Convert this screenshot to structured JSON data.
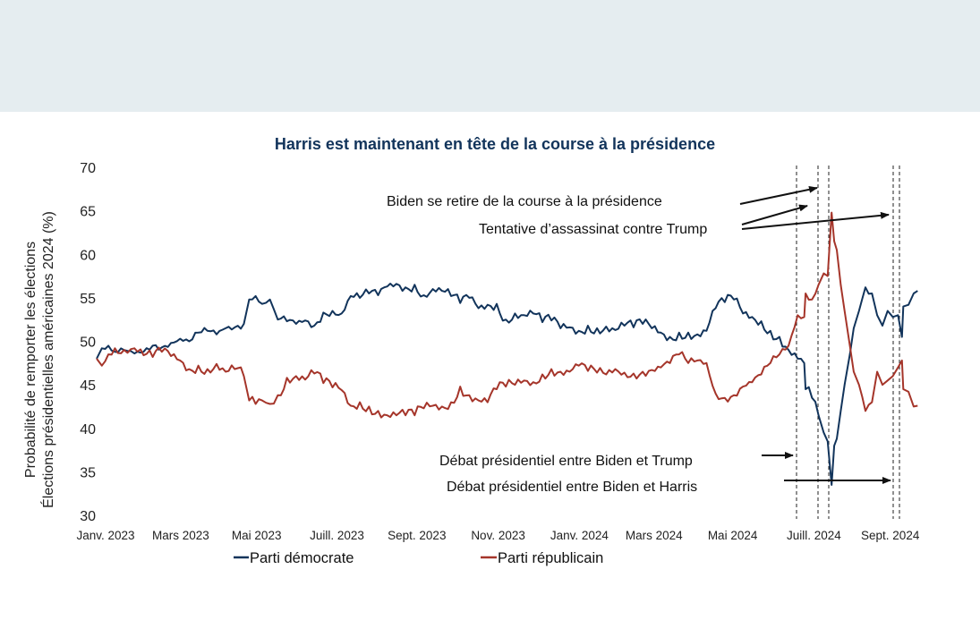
{
  "header": {
    "background": "#e5edf0"
  },
  "chart_data": {
    "type": "line",
    "title": "Harris  est maintenant en tête de la course à la présidence",
    "ylabel_lines": [
      "Probabilité de remporter les élections",
      "Élections présidentielles américaines 2024 (%)"
    ],
    "xlabel": "",
    "ylim": [
      30,
      70
    ],
    "yticks": [
      30,
      35,
      40,
      45,
      50,
      55,
      60,
      65,
      70
    ],
    "xlim_dates": [
      "2023-01-01",
      "2024-09-30"
    ],
    "xticks": [
      {
        "label": "Janv. 2023",
        "date": "2023-01-01"
      },
      {
        "label": "Mars 2023",
        "date": "2023-03-01"
      },
      {
        "label": "Mai 2023",
        "date": "2023-05-01"
      },
      {
        "label": "Juill. 2023",
        "date": "2023-07-01"
      },
      {
        "label": "Sept. 2023",
        "date": "2023-09-01"
      },
      {
        "label": "Nov. 2023",
        "date": "2023-11-01"
      },
      {
        "label": "Janv. 2024",
        "date": "2024-01-01"
      },
      {
        "label": "Mars 2024",
        "date": "2024-03-01"
      },
      {
        "label": "Mai 2024",
        "date": "2024-05-01"
      },
      {
        "label": "Juill. 2024",
        "date": "2024-07-01"
      },
      {
        "label": "Sept. 2024",
        "date": "2024-09-01"
      }
    ],
    "grid": false,
    "legend_position": "bottom",
    "series": [
      {
        "name": "Parti démocrate",
        "color": "#12345b",
        "points": [
          [
            "2023-01-01",
            48.0
          ],
          [
            "2023-01-05",
            49.2
          ],
          [
            "2023-01-10",
            49.5
          ],
          [
            "2023-01-15",
            48.8
          ],
          [
            "2023-01-22",
            49.0
          ],
          [
            "2023-01-30",
            48.6
          ],
          [
            "2023-02-06",
            48.8
          ],
          [
            "2023-02-13",
            49.5
          ],
          [
            "2023-02-20",
            49.3
          ],
          [
            "2023-02-27",
            49.8
          ],
          [
            "2023-03-06",
            50.3
          ],
          [
            "2023-03-13",
            50.0
          ],
          [
            "2023-03-20",
            51.0
          ],
          [
            "2023-03-27",
            51.2
          ],
          [
            "2023-04-03",
            50.8
          ],
          [
            "2023-04-10",
            51.5
          ],
          [
            "2023-04-17",
            51.6
          ],
          [
            "2023-04-24",
            52.0
          ],
          [
            "2023-04-28",
            54.8
          ],
          [
            "2023-05-03",
            55.2
          ],
          [
            "2023-05-08",
            54.3
          ],
          [
            "2023-05-14",
            54.8
          ],
          [
            "2023-05-20",
            52.5
          ],
          [
            "2023-05-27",
            52.3
          ],
          [
            "2023-06-03",
            52.0
          ],
          [
            "2023-06-10",
            52.4
          ],
          [
            "2023-06-17",
            51.8
          ],
          [
            "2023-06-24",
            53.3
          ],
          [
            "2023-07-01",
            53.5
          ],
          [
            "2023-07-08",
            53.2
          ],
          [
            "2023-07-15",
            55.2
          ],
          [
            "2023-07-22",
            55.0
          ],
          [
            "2023-07-29",
            55.5
          ],
          [
            "2023-08-05",
            55.3
          ],
          [
            "2023-08-12",
            56.3
          ],
          [
            "2023-08-19",
            56.6
          ],
          [
            "2023-08-26",
            56.2
          ],
          [
            "2023-09-02",
            56.5
          ],
          [
            "2023-09-09",
            55.3
          ],
          [
            "2023-09-16",
            56.0
          ],
          [
            "2023-09-23",
            55.8
          ],
          [
            "2023-09-30",
            55.2
          ],
          [
            "2023-10-07",
            54.4
          ],
          [
            "2023-10-14",
            55.0
          ],
          [
            "2023-10-21",
            53.8
          ],
          [
            "2023-10-28",
            54.2
          ],
          [
            "2023-11-04",
            54.3
          ],
          [
            "2023-11-11",
            52.5
          ],
          [
            "2023-11-18",
            53.2
          ],
          [
            "2023-11-25",
            53.0
          ],
          [
            "2023-12-02",
            53.2
          ],
          [
            "2023-12-09",
            52.2
          ],
          [
            "2023-12-16",
            52.4
          ],
          [
            "2023-12-23",
            51.5
          ],
          [
            "2023-12-30",
            51.6
          ],
          [
            "2024-01-06",
            51.2
          ],
          [
            "2024-01-13",
            51.8
          ],
          [
            "2024-01-20",
            51.5
          ],
          [
            "2024-01-27",
            51.7
          ],
          [
            "2024-02-03",
            51.3
          ],
          [
            "2024-02-10",
            51.8
          ],
          [
            "2024-02-17",
            51.6
          ],
          [
            "2024-02-24",
            52.0
          ],
          [
            "2024-03-02",
            51.5
          ],
          [
            "2024-03-09",
            51.0
          ],
          [
            "2024-03-16",
            50.5
          ],
          [
            "2024-03-23",
            51.0
          ],
          [
            "2024-03-30",
            51.0
          ],
          [
            "2024-04-06",
            50.8
          ],
          [
            "2024-04-13",
            51.2
          ],
          [
            "2024-04-20",
            53.8
          ],
          [
            "2024-04-27",
            54.5
          ],
          [
            "2024-05-04",
            54.8
          ],
          [
            "2024-05-11",
            53.2
          ],
          [
            "2024-05-18",
            52.8
          ],
          [
            "2024-05-25",
            52.3
          ],
          [
            "2024-06-01",
            51.2
          ],
          [
            "2024-06-08",
            50.5
          ],
          [
            "2024-06-15",
            49.0
          ],
          [
            "2024-06-22",
            48.0
          ],
          [
            "2024-06-27",
            47.5
          ],
          [
            "2024-06-28",
            44.5
          ],
          [
            "2024-07-03",
            43.5
          ],
          [
            "2024-07-08",
            41.5
          ],
          [
            "2024-07-12",
            39.5
          ],
          [
            "2024-07-15",
            38.5
          ],
          [
            "2024-07-18",
            33.5
          ],
          [
            "2024-07-20",
            38.0
          ],
          [
            "2024-07-22",
            38.8
          ],
          [
            "2024-07-25",
            42.0
          ],
          [
            "2024-07-28",
            45.0
          ],
          [
            "2024-08-01",
            48.5
          ],
          [
            "2024-08-04",
            51.5
          ],
          [
            "2024-08-08",
            53.5
          ],
          [
            "2024-08-13",
            56.2
          ],
          [
            "2024-08-18",
            55.5
          ],
          [
            "2024-08-22",
            53.0
          ],
          [
            "2024-08-26",
            51.8
          ],
          [
            "2024-08-30",
            53.5
          ],
          [
            "2024-09-03",
            52.8
          ],
          [
            "2024-09-07",
            53.0
          ],
          [
            "2024-09-10",
            50.5
          ],
          [
            "2024-09-11",
            54.0
          ],
          [
            "2024-09-15",
            54.2
          ],
          [
            "2024-09-19",
            55.5
          ],
          [
            "2024-09-22",
            55.8
          ]
        ]
      },
      {
        "name": "Parti républicain",
        "color": "#a5352a",
        "points": [
          [
            "2023-01-01",
            48.0
          ],
          [
            "2023-01-05",
            47.2
          ],
          [
            "2023-01-10",
            48.5
          ],
          [
            "2023-01-15",
            49.2
          ],
          [
            "2023-01-22",
            49.0
          ],
          [
            "2023-01-30",
            49.2
          ],
          [
            "2023-02-06",
            48.4
          ],
          [
            "2023-02-13",
            48.2
          ],
          [
            "2023-02-20",
            48.8
          ],
          [
            "2023-02-27",
            48.3
          ],
          [
            "2023-03-06",
            47.8
          ],
          [
            "2023-03-13",
            46.8
          ],
          [
            "2023-03-20",
            47.2
          ],
          [
            "2023-03-27",
            46.8
          ],
          [
            "2023-04-03",
            47.4
          ],
          [
            "2023-04-10",
            46.5
          ],
          [
            "2023-04-17",
            46.8
          ],
          [
            "2023-04-24",
            46.0
          ],
          [
            "2023-04-28",
            43.2
          ],
          [
            "2023-05-03",
            42.8
          ],
          [
            "2023-05-08",
            43.2
          ],
          [
            "2023-05-14",
            42.8
          ],
          [
            "2023-05-20",
            43.8
          ],
          [
            "2023-05-27",
            45.8
          ],
          [
            "2023-06-03",
            46.0
          ],
          [
            "2023-06-10",
            45.6
          ],
          [
            "2023-06-17",
            46.3
          ],
          [
            "2023-06-24",
            45.2
          ],
          [
            "2023-07-01",
            44.7
          ],
          [
            "2023-07-08",
            44.4
          ],
          [
            "2023-07-15",
            42.6
          ],
          [
            "2023-07-22",
            43.0
          ],
          [
            "2023-07-29",
            42.5
          ],
          [
            "2023-08-05",
            42.0
          ],
          [
            "2023-08-12",
            41.5
          ],
          [
            "2023-08-19",
            41.5
          ],
          [
            "2023-08-26",
            41.5
          ],
          [
            "2023-09-02",
            41.5
          ],
          [
            "2023-09-09",
            42.3
          ],
          [
            "2023-09-16",
            42.6
          ],
          [
            "2023-09-23",
            42.5
          ],
          [
            "2023-09-30",
            43.0
          ],
          [
            "2023-10-07",
            44.8
          ],
          [
            "2023-10-14",
            43.8
          ],
          [
            "2023-10-21",
            43.2
          ],
          [
            "2023-10-28",
            43.0
          ],
          [
            "2023-11-04",
            44.5
          ],
          [
            "2023-11-11",
            44.8
          ],
          [
            "2023-11-18",
            45.0
          ],
          [
            "2023-11-25",
            45.5
          ],
          [
            "2023-12-02",
            45.3
          ],
          [
            "2023-12-09",
            46.2
          ],
          [
            "2023-12-16",
            46.8
          ],
          [
            "2023-12-23",
            46.5
          ],
          [
            "2023-12-30",
            46.5
          ],
          [
            "2024-01-06",
            47.2
          ],
          [
            "2024-01-13",
            46.6
          ],
          [
            "2024-01-20",
            46.4
          ],
          [
            "2024-01-27",
            46.2
          ],
          [
            "2024-02-03",
            46.8
          ],
          [
            "2024-02-10",
            46.4
          ],
          [
            "2024-02-17",
            46.3
          ],
          [
            "2024-02-24",
            46.5
          ],
          [
            "2024-03-02",
            46.7
          ],
          [
            "2024-03-09",
            47.0
          ],
          [
            "2024-03-16",
            47.5
          ],
          [
            "2024-03-23",
            48.5
          ],
          [
            "2024-03-30",
            47.5
          ],
          [
            "2024-04-06",
            47.8
          ],
          [
            "2024-04-13",
            47.5
          ],
          [
            "2024-04-20",
            44.0
          ],
          [
            "2024-04-27",
            43.5
          ],
          [
            "2024-05-04",
            43.8
          ],
          [
            "2024-05-11",
            44.8
          ],
          [
            "2024-05-18",
            45.3
          ],
          [
            "2024-05-25",
            46.2
          ],
          [
            "2024-06-01",
            47.5
          ],
          [
            "2024-06-08",
            48.5
          ],
          [
            "2024-06-15",
            49.5
          ],
          [
            "2024-06-22",
            53.0
          ],
          [
            "2024-06-27",
            52.8
          ],
          [
            "2024-06-28",
            55.5
          ],
          [
            "2024-07-03",
            54.8
          ],
          [
            "2024-07-08",
            56.5
          ],
          [
            "2024-07-12",
            57.8
          ],
          [
            "2024-07-15",
            57.5
          ],
          [
            "2024-07-18",
            64.8
          ],
          [
            "2024-07-20",
            61.5
          ],
          [
            "2024-07-22",
            60.5
          ],
          [
            "2024-07-25",
            56.5
          ],
          [
            "2024-07-28",
            53.5
          ],
          [
            "2024-08-01",
            49.5
          ],
          [
            "2024-08-04",
            46.5
          ],
          [
            "2024-08-08",
            45.0
          ],
          [
            "2024-08-13",
            42.0
          ],
          [
            "2024-08-18",
            43.0
          ],
          [
            "2024-08-22",
            46.5
          ],
          [
            "2024-08-26",
            45.0
          ],
          [
            "2024-08-30",
            45.5
          ],
          [
            "2024-09-03",
            46.0
          ],
          [
            "2024-09-07",
            47.0
          ],
          [
            "2024-09-10",
            47.8
          ],
          [
            "2024-09-11",
            44.5
          ],
          [
            "2024-09-15",
            44.2
          ],
          [
            "2024-09-19",
            42.5
          ],
          [
            "2024-09-22",
            42.6
          ]
        ]
      }
    ],
    "event_lines": [
      {
        "name": "Débat présidentiel entre Biden et Trump",
        "date": "2024-06-27"
      },
      {
        "name": "Tentative d’assassinat contre Trump",
        "date": "2024-07-13"
      },
      {
        "name": "Biden se retire de la course à la présidence",
        "date": "2024-07-21"
      },
      {
        "name": "Débat présidentiel entre Biden et Harris",
        "date": "2024-09-10"
      },
      {
        "name": "Tentative d’assassinat contre Trump",
        "date": "2024-09-15"
      }
    ],
    "annotations": [
      {
        "text": "Biden se retire de la course à la présidence"
      },
      {
        "text": "Tentative d’assassinat contre Trump"
      },
      {
        "text": "Débat présidentiel entre Biden et Trump"
      },
      {
        "text": "Débat présidentiel entre Biden et Harris"
      }
    ],
    "legend": [
      {
        "label": "Parti démocrate",
        "color": "#12345b"
      },
      {
        "label": "Parti républicain",
        "color": "#a5352a"
      }
    ]
  }
}
